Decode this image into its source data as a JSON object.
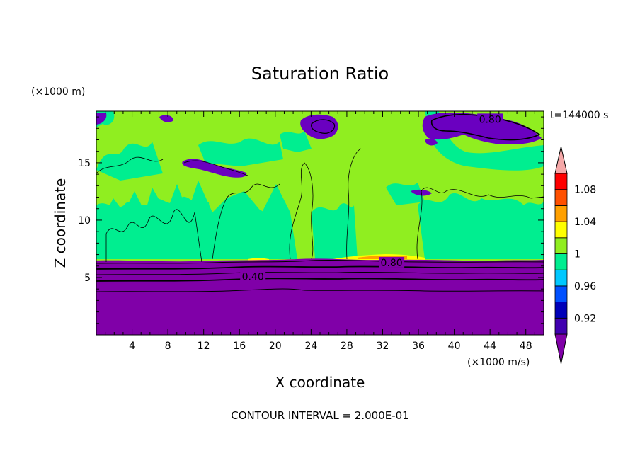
{
  "chart_data": {
    "type": "heatmap",
    "title": "Saturation Ratio",
    "xlabel": "X coordinate",
    "ylabel": "Z coordinate",
    "x_unit": "(×1000 m/s)",
    "y_unit": "(×1000 m)",
    "time_label": "t=144000 s",
    "footer": "CONTOUR INTERVAL = 2.000E-01",
    "xlim": [
      0,
      50
    ],
    "ylim": [
      0,
      19.5
    ],
    "x_ticks": [
      "4",
      "8",
      "12",
      "16",
      "20",
      "24",
      "28",
      "32",
      "36",
      "40",
      "44",
      "48"
    ],
    "x_tick_values": [
      4,
      8,
      12,
      16,
      20,
      24,
      28,
      32,
      36,
      40,
      44,
      48
    ],
    "y_ticks": [
      "5",
      "10",
      "15"
    ],
    "y_tick_values": [
      5,
      10,
      15
    ],
    "contour_labels": [
      {
        "text": "0.40",
        "x": 17.5,
        "z": 5.1
      },
      {
        "text": "0.80",
        "x": 33,
        "z": 6.3
      },
      {
        "text": "0.80",
        "x": 44,
        "z": 18.8
      }
    ],
    "colorbar": {
      "levels": [
        0.9,
        0.92,
        0.94,
        0.96,
        0.98,
        1.0,
        1.02,
        1.04,
        1.06,
        1.08,
        1.1
      ],
      "labels": [
        "0.92",
        "0.96",
        "1",
        "1.04",
        "1.08"
      ],
      "label_values": [
        0.92,
        0.96,
        1.0,
        1.04,
        1.08
      ],
      "colors": [
        "#8000a8",
        "#4000b0",
        "#0000b8",
        "#0050ff",
        "#00c8ff",
        "#00ee90",
        "#90ee20",
        "#ffff00",
        "#ffa000",
        "#ff5000",
        "#ff0000",
        "#f5a8a8"
      ]
    }
  }
}
